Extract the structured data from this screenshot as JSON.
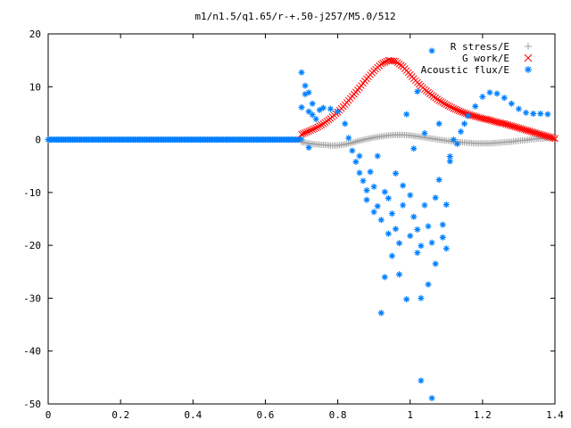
{
  "chart_data": {
    "type": "scatter",
    "title": "m1/n1.5/q1.65/r-+.50-j257/M5.0/512",
    "xlabel": "",
    "ylabel": "",
    "xlim": [
      0,
      1.4
    ],
    "ylim": [
      -50,
      20
    ],
    "xticks": [
      "0",
      "0.2",
      "0.4",
      "0.6",
      "0.8",
      "1",
      "1.2",
      "1.4"
    ],
    "yticks": [
      "20",
      "10",
      "0",
      "-10",
      "-20",
      "-30",
      "-40",
      "-50"
    ],
    "grid": false,
    "legend_position": "top-right",
    "series": [
      {
        "name": "R stress/E",
        "marker": "plus",
        "color": "#a0a0a0",
        "points": [
          [
            0.7,
            -0.5
          ],
          [
            0.72,
            -0.7
          ],
          [
            0.74,
            -0.9
          ],
          [
            0.76,
            -1.0
          ],
          [
            0.78,
            -1.1
          ],
          [
            0.8,
            -1.1
          ],
          [
            0.82,
            -0.9
          ],
          [
            0.84,
            -0.6
          ],
          [
            0.86,
            -0.2
          ],
          [
            0.88,
            0.1
          ],
          [
            0.9,
            0.4
          ],
          [
            0.92,
            0.6
          ],
          [
            0.94,
            0.8
          ],
          [
            0.96,
            0.9
          ],
          [
            0.98,
            0.9
          ],
          [
            1.0,
            0.8
          ],
          [
            1.02,
            0.6
          ],
          [
            1.04,
            0.4
          ],
          [
            1.06,
            0.2
          ],
          [
            1.08,
            0.0
          ],
          [
            1.1,
            -0.2
          ],
          [
            1.12,
            -0.4
          ],
          [
            1.14,
            -0.5
          ],
          [
            1.16,
            -0.6
          ],
          [
            1.18,
            -0.7
          ],
          [
            1.2,
            -0.7
          ],
          [
            1.22,
            -0.7
          ],
          [
            1.24,
            -0.6
          ],
          [
            1.26,
            -0.5
          ],
          [
            1.28,
            -0.4
          ],
          [
            1.3,
            -0.2
          ],
          [
            1.32,
            -0.1
          ],
          [
            1.34,
            0.1
          ],
          [
            1.36,
            0.2
          ],
          [
            1.38,
            0.3
          ],
          [
            1.4,
            0.3
          ]
        ]
      },
      {
        "name": "G work/E",
        "marker": "cross",
        "color": "#ff0000",
        "points": [
          [
            0.7,
            1.0
          ],
          [
            0.72,
            1.6
          ],
          [
            0.74,
            2.2
          ],
          [
            0.76,
            3.0
          ],
          [
            0.78,
            4.0
          ],
          [
            0.8,
            5.2
          ],
          [
            0.82,
            6.6
          ],
          [
            0.84,
            8.2
          ],
          [
            0.86,
            9.8
          ],
          [
            0.88,
            11.5
          ],
          [
            0.9,
            13.0
          ],
          [
            0.92,
            14.3
          ],
          [
            0.94,
            15.0
          ],
          [
            0.96,
            14.8
          ],
          [
            0.98,
            13.8
          ],
          [
            1.0,
            12.3
          ],
          [
            1.02,
            10.8
          ],
          [
            1.04,
            9.5
          ],
          [
            1.06,
            8.4
          ],
          [
            1.08,
            7.4
          ],
          [
            1.1,
            6.6
          ],
          [
            1.12,
            5.9
          ],
          [
            1.14,
            5.3
          ],
          [
            1.16,
            4.8
          ],
          [
            1.18,
            4.4
          ],
          [
            1.2,
            4.0
          ],
          [
            1.22,
            3.7
          ],
          [
            1.24,
            3.3
          ],
          [
            1.26,
            3.0
          ],
          [
            1.28,
            2.6
          ],
          [
            1.3,
            2.2
          ],
          [
            1.32,
            1.8
          ],
          [
            1.34,
            1.4
          ],
          [
            1.36,
            1.0
          ],
          [
            1.38,
            0.6
          ],
          [
            1.4,
            0.2
          ]
        ]
      },
      {
        "name": "Acoustic flux/E",
        "marker": "star",
        "color": "#0080ff",
        "points": [
          [
            0.7,
            12.7
          ],
          [
            0.7,
            6.1
          ],
          [
            0.71,
            10.2
          ],
          [
            0.71,
            8.6
          ],
          [
            0.72,
            8.9
          ],
          [
            0.72,
            5.3
          ],
          [
            0.72,
            -1.5
          ],
          [
            0.73,
            6.8
          ],
          [
            0.73,
            4.7
          ],
          [
            0.74,
            3.9
          ],
          [
            0.75,
            5.6
          ],
          [
            0.76,
            6.0
          ],
          [
            0.78,
            5.8
          ],
          [
            0.8,
            5.3
          ],
          [
            0.82,
            3.0
          ],
          [
            0.83,
            0.3
          ],
          [
            0.84,
            -2.1
          ],
          [
            0.85,
            -4.2
          ],
          [
            0.86,
            -6.3
          ],
          [
            0.86,
            -3.1
          ],
          [
            0.87,
            -7.8
          ],
          [
            0.88,
            -9.6
          ],
          [
            0.88,
            -11.4
          ],
          [
            0.89,
            -6.1
          ],
          [
            0.9,
            -13.7
          ],
          [
            0.9,
            -8.9
          ],
          [
            0.91,
            -12.6
          ],
          [
            0.91,
            -3.1
          ],
          [
            0.92,
            -15.2
          ],
          [
            0.92,
            -32.8
          ],
          [
            0.93,
            -9.9
          ],
          [
            0.93,
            -26.0
          ],
          [
            0.94,
            -17.8
          ],
          [
            0.94,
            -11.1
          ],
          [
            0.95,
            -14.0
          ],
          [
            0.95,
            -22.0
          ],
          [
            0.96,
            -16.9
          ],
          [
            0.96,
            -6.4
          ],
          [
            0.97,
            -19.6
          ],
          [
            0.97,
            -25.5
          ],
          [
            0.98,
            -12.4
          ],
          [
            0.98,
            -8.7
          ],
          [
            0.99,
            -30.2
          ],
          [
            0.99,
            4.8
          ],
          [
            1.0,
            -18.2
          ],
          [
            1.0,
            -10.5
          ],
          [
            1.01,
            -14.6
          ],
          [
            1.01,
            -1.7
          ],
          [
            1.02,
            -21.4
          ],
          [
            1.02,
            -17.0
          ],
          [
            1.02,
            9.1
          ],
          [
            1.03,
            -20.1
          ],
          [
            1.03,
            -30.0
          ],
          [
            1.03,
            -45.6
          ],
          [
            1.04,
            -12.4
          ],
          [
            1.04,
            1.2
          ],
          [
            1.05,
            -16.4
          ],
          [
            1.05,
            -27.4
          ],
          [
            1.06,
            -19.5
          ],
          [
            1.06,
            16.8
          ],
          [
            1.06,
            -48.9
          ],
          [
            1.07,
            -11.0
          ],
          [
            1.07,
            -23.5
          ],
          [
            1.08,
            -7.6
          ],
          [
            1.08,
            3.0
          ],
          [
            1.09,
            -18.5
          ],
          [
            1.09,
            -16.1
          ],
          [
            1.1,
            -20.6
          ],
          [
            1.1,
            -12.3
          ],
          [
            1.11,
            -3.2
          ],
          [
            1.11,
            -4.1
          ],
          [
            1.12,
            0.0
          ],
          [
            1.13,
            -0.8
          ],
          [
            1.14,
            1.5
          ],
          [
            1.15,
            3.0
          ],
          [
            1.16,
            4.5
          ],
          [
            1.18,
            6.3
          ],
          [
            1.2,
            8.1
          ],
          [
            1.22,
            8.9
          ],
          [
            1.24,
            8.7
          ],
          [
            1.26,
            7.9
          ],
          [
            1.28,
            6.8
          ],
          [
            1.3,
            5.8
          ],
          [
            1.32,
            5.1
          ],
          [
            1.34,
            4.9
          ],
          [
            1.36,
            4.9
          ],
          [
            1.38,
            4.8
          ]
        ]
      }
    ],
    "baseline_series_segment": {
      "series": "Acoustic flux/E",
      "x_from": 0.0,
      "x_to": 0.7,
      "y": 0
    }
  }
}
